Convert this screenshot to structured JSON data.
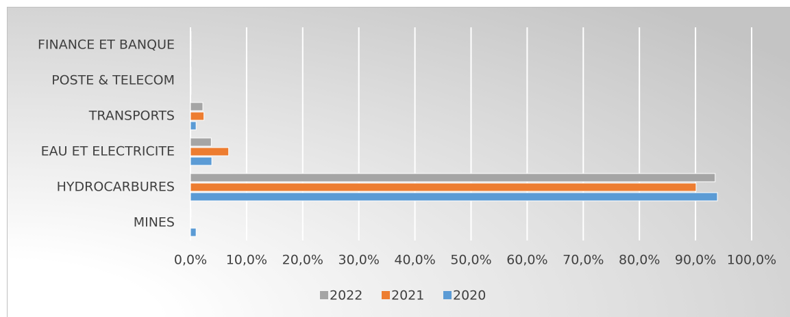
{
  "chart_data": {
    "type": "bar",
    "orientation": "horizontal",
    "categories": [
      "FINANCE ET BANQUE",
      "POSTE & TELECOM",
      "TRANSPORTS",
      "EAU ET ELECTRICITE",
      "HYDROCARBURES",
      "MINES"
    ],
    "series": [
      {
        "name": "2022",
        "color": "#a5a5a5",
        "values": [
          0.1,
          0.1,
          2.2,
          3.7,
          93.5,
          0.1
        ]
      },
      {
        "name": "2021",
        "color": "#ed7d31",
        "values": [
          0.1,
          0.1,
          2.4,
          6.8,
          90.1,
          0
        ]
      },
      {
        "name": "2020",
        "color": "#5b9bd5",
        "values": [
          0.1,
          0.1,
          1.0,
          3.8,
          93.9,
          1.0
        ]
      }
    ],
    "xlim": [
      0,
      100
    ],
    "xticks": [
      {
        "value": 0,
        "label": "0,0%"
      },
      {
        "value": 10,
        "label": "10,0%"
      },
      {
        "value": 20,
        "label": "20,0%"
      },
      {
        "value": 30,
        "label": "30,0%"
      },
      {
        "value": 40,
        "label": "40,0%"
      },
      {
        "value": 50,
        "label": "50,0%"
      },
      {
        "value": 60,
        "label": "60,0%"
      },
      {
        "value": 70,
        "label": "70,0%"
      },
      {
        "value": 80,
        "label": "80,0%"
      },
      {
        "value": 90,
        "label": "90,0%"
      },
      {
        "value": 100,
        "label": "100,0%"
      }
    ],
    "grid": true,
    "legend": "bottom"
  }
}
